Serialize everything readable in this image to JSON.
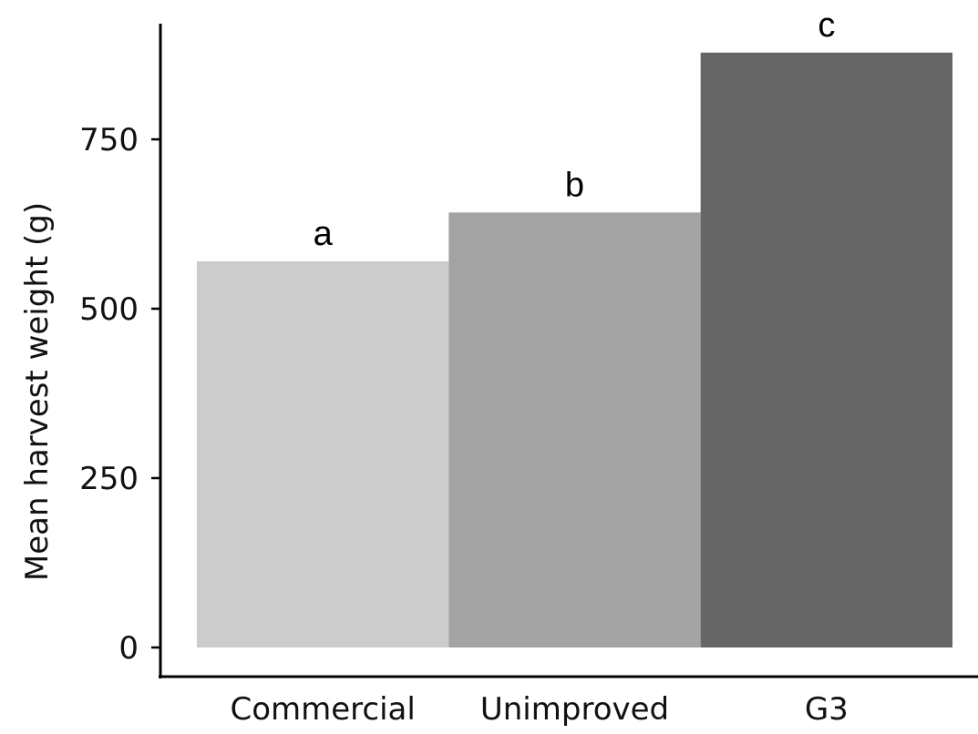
{
  "chart_data": {
    "type": "bar",
    "categories": [
      "Commercial",
      "Unimproved",
      "G3"
    ],
    "values": [
      570,
      642,
      878
    ],
    "significance_letters": [
      "a",
      "b",
      "c"
    ],
    "colors": [
      "#cccccc",
      "#a3a3a3",
      "#666666"
    ],
    "title": "",
    "xlabel": "",
    "ylabel": "Mean harvest weight (g)",
    "ylim": [
      0,
      920
    ],
    "yticks": [
      0,
      250,
      500,
      750
    ],
    "grid": false
  }
}
